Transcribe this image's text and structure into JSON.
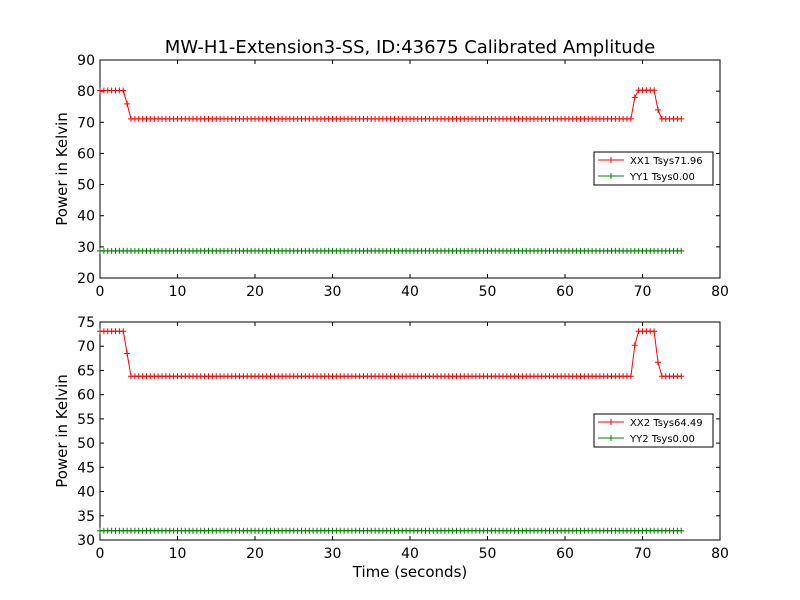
{
  "figure": {
    "title": "MW-H1-Extension3-SS, ID:43675 Calibrated Amplitude",
    "background": "#ffffff"
  },
  "colors": {
    "xx": "#ff0000",
    "yy": "#008000",
    "axes": "#000000"
  },
  "chart_data": [
    {
      "type": "line",
      "marker": "plus",
      "title": "",
      "xlabel": "",
      "ylabel": "Power in Kelvin",
      "xlim": [
        0,
        80
      ],
      "ylim": [
        20,
        90
      ],
      "xticks": [
        0,
        10,
        20,
        30,
        40,
        50,
        60,
        70,
        80
      ],
      "yticks": [
        20,
        30,
        40,
        50,
        60,
        70,
        80,
        90
      ],
      "grid": false,
      "legend_position": "right",
      "sample_interval": 0.5,
      "series": [
        {
          "name": "XX1 Tsys71.96",
          "color": "#ff0000",
          "segments": [
            {
              "t0": 0,
              "t1": 3.5,
              "value": 80.2
            },
            {
              "t0": 3.5,
              "t1": 4.0,
              "value": 75.9
            },
            {
              "t0": 4.0,
              "t1": 69.0,
              "value": 71.1
            },
            {
              "t0": 69.0,
              "t1": 69.5,
              "value": 78.0
            },
            {
              "t0": 69.5,
              "t1": 72.0,
              "value": 80.3
            },
            {
              "t0": 72.0,
              "t1": 72.5,
              "value": 74.0
            },
            {
              "t0": 72.5,
              "t1": 75.0,
              "value": 71.1
            }
          ]
        },
        {
          "name": "YY1 Tsys0.00",
          "color": "#008000",
          "segments": [
            {
              "t0": 0,
              "t1": 75.0,
              "value": 28.7
            }
          ]
        }
      ]
    },
    {
      "type": "line",
      "marker": "plus",
      "title": "",
      "xlabel": "Time (seconds)",
      "ylabel": "Power in Kelvin",
      "xlim": [
        0,
        80
      ],
      "ylim": [
        30,
        75
      ],
      "xticks": [
        0,
        10,
        20,
        30,
        40,
        50,
        60,
        70,
        80
      ],
      "yticks": [
        30,
        35,
        40,
        45,
        50,
        55,
        60,
        65,
        70,
        75
      ],
      "grid": false,
      "legend_position": "right",
      "sample_interval": 0.5,
      "series": [
        {
          "name": "XX2 Tsys64.49",
          "color": "#ff0000",
          "segments": [
            {
              "t0": 0,
              "t1": 3.5,
              "value": 73.1
            },
            {
              "t0": 3.5,
              "t1": 4.0,
              "value": 68.5
            },
            {
              "t0": 4.0,
              "t1": 69.0,
              "value": 63.8
            },
            {
              "t0": 69.0,
              "t1": 69.5,
              "value": 70.2
            },
            {
              "t0": 69.5,
              "t1": 72.0,
              "value": 73.1
            },
            {
              "t0": 72.0,
              "t1": 72.5,
              "value": 66.7
            },
            {
              "t0": 72.5,
              "t1": 75.0,
              "value": 63.8
            }
          ]
        },
        {
          "name": "YY2 Tsys0.00",
          "color": "#008000",
          "segments": [
            {
              "t0": 0,
              "t1": 75.0,
              "value": 31.9
            }
          ]
        }
      ]
    }
  ]
}
